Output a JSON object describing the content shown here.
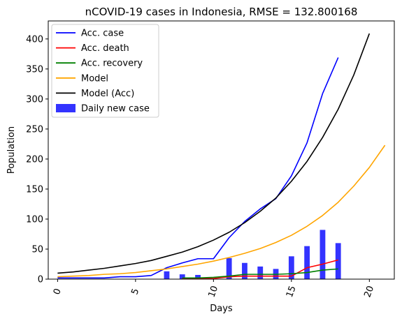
{
  "chart_data": {
    "type": "line",
    "title": "nCOVID-19 cases in Indonesia, RMSE = 132.800168",
    "xlabel": "Days",
    "ylabel": "Population",
    "xlim": [
      -0.6,
      21.6
    ],
    "ylim": [
      0,
      430
    ],
    "xticks": [
      0,
      5,
      10,
      15,
      20
    ],
    "yticks": [
      0,
      50,
      100,
      150,
      200,
      250,
      300,
      350,
      400
    ],
    "xtick_rotation": -70,
    "grid": false,
    "legend_placement": "top-left",
    "series": [
      {
        "name": "Acc. case",
        "kind": "line",
        "color": "#0000ff",
        "x": [
          0,
          1,
          2,
          3,
          4,
          5,
          6,
          7,
          8,
          9,
          10,
          11,
          12,
          13,
          14,
          15,
          16,
          17,
          18
        ],
        "y": [
          2,
          2,
          2,
          2,
          4,
          4,
          6,
          19,
          27,
          34,
          34,
          69,
          96,
          117,
          134,
          172,
          227,
          309,
          369
        ]
      },
      {
        "name": "Acc. death",
        "kind": "line",
        "color": "#ff0000",
        "x": [
          8,
          9,
          10,
          11,
          12,
          13,
          14,
          15,
          16,
          17,
          18
        ],
        "y": [
          1,
          1,
          1,
          4,
          5,
          5,
          5,
          5,
          19,
          25,
          32
        ]
      },
      {
        "name": "Acc. recovery",
        "kind": "line",
        "color": "#008000",
        "x": [
          8,
          9,
          10,
          11,
          12,
          13,
          14,
          15,
          16,
          17,
          18
        ],
        "y": [
          2,
          2,
          3,
          5,
          8,
          8,
          8,
          9,
          11,
          15,
          17
        ]
      },
      {
        "name": "Model",
        "kind": "line",
        "color": "#ffa500",
        "x": [
          0,
          1,
          2,
          3,
          4,
          5,
          6,
          7,
          8,
          9,
          10,
          11,
          12,
          13,
          14,
          15,
          16,
          17,
          18,
          19,
          20,
          21
        ],
        "y": [
          4,
          5,
          6,
          8,
          9,
          11,
          14,
          17,
          21,
          25,
          30,
          36,
          43,
          51,
          61,
          73,
          88,
          106,
          128,
          155,
          186,
          223
        ]
      },
      {
        "name": "Model (Acc)",
        "kind": "line",
        "color": "#000000",
        "x": [
          0,
          1,
          2,
          3,
          4,
          5,
          6,
          7,
          8,
          9,
          10,
          11,
          12,
          13,
          14,
          15,
          16,
          17,
          18,
          19,
          20
        ],
        "y": [
          10,
          12,
          15,
          18,
          22,
          26,
          31,
          38,
          45,
          54,
          65,
          78,
          94,
          113,
          135,
          163,
          196,
          236,
          283,
          340,
          409
        ]
      },
      {
        "name": "Daily new case",
        "kind": "bar",
        "color": "#3333ff",
        "x": [
          7,
          8,
          9,
          10,
          11,
          12,
          13,
          14,
          15,
          16,
          17,
          18
        ],
        "y": [
          13,
          8,
          7,
          0,
          35,
          27,
          21,
          17,
          38,
          55,
          82,
          60
        ]
      }
    ]
  }
}
